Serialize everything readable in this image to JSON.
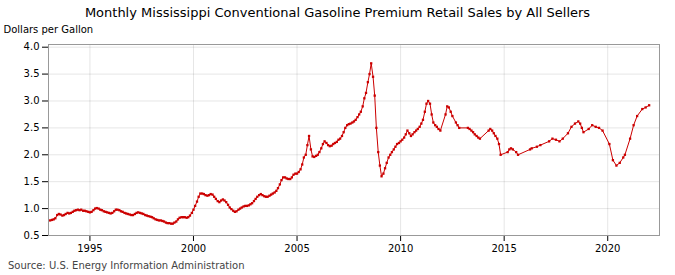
{
  "chart_data": {
    "type": "line",
    "title": "Monthly Mississippi Conventional Gasoline Premium Retail Sales by All Sellers",
    "ylabel": "Dollars per Gallon",
    "source": "Source: U.S. Energy Information Administration",
    "color": "#cc0000",
    "marker": "square",
    "grid": true,
    "xlim": [
      1993.0,
      2022.5
    ],
    "ylim": [
      0.5,
      4.05
    ],
    "xticks": [
      1995,
      2000,
      2005,
      2010,
      2015,
      2020
    ],
    "yticks": [
      0.5,
      {
        "value": 1.0,
        "label": "1.0"
      },
      1.5,
      {
        "value": 2.0,
        "label": "2.0"
      },
      2.5,
      {
        "value": 3.0,
        "label": "3.0"
      },
      3.5,
      {
        "value": 4.0,
        "label": "4.0"
      }
    ],
    "x": [
      1993.08,
      1993.17,
      1993.25,
      1993.33,
      1993.42,
      1993.5,
      1993.58,
      1993.67,
      1993.75,
      1993.83,
      1993.92,
      1994.0,
      1994.08,
      1994.17,
      1994.25,
      1994.33,
      1994.42,
      1994.5,
      1994.58,
      1994.67,
      1994.75,
      1994.83,
      1994.92,
      1995.0,
      1995.08,
      1995.17,
      1995.25,
      1995.33,
      1995.42,
      1995.5,
      1995.58,
      1995.67,
      1995.75,
      1995.83,
      1995.92,
      1996.0,
      1996.08,
      1996.17,
      1996.25,
      1996.33,
      1996.42,
      1996.5,
      1996.58,
      1996.67,
      1996.75,
      1996.83,
      1996.92,
      1997.0,
      1997.08,
      1997.17,
      1997.25,
      1997.33,
      1997.42,
      1997.5,
      1997.58,
      1997.67,
      1997.75,
      1997.83,
      1997.92,
      1998.0,
      1998.08,
      1998.17,
      1998.25,
      1998.33,
      1998.42,
      1998.5,
      1998.58,
      1998.67,
      1998.75,
      1998.83,
      1998.92,
      1999.0,
      1999.08,
      1999.17,
      1999.25,
      1999.33,
      1999.42,
      1999.5,
      1999.58,
      1999.67,
      1999.75,
      1999.83,
      1999.92,
      2000.0,
      2000.08,
      2000.17,
      2000.25,
      2000.33,
      2000.42,
      2000.5,
      2000.58,
      2000.67,
      2000.75,
      2000.83,
      2000.92,
      2001.0,
      2001.08,
      2001.17,
      2001.25,
      2001.33,
      2001.42,
      2001.5,
      2001.58,
      2001.67,
      2001.75,
      2001.83,
      2001.92,
      2002.0,
      2002.08,
      2002.17,
      2002.25,
      2002.33,
      2002.42,
      2002.5,
      2002.58,
      2002.67,
      2002.75,
      2002.83,
      2002.92,
      2003.0,
      2003.08,
      2003.17,
      2003.25,
      2003.33,
      2003.42,
      2003.5,
      2003.58,
      2003.67,
      2003.75,
      2003.83,
      2003.92,
      2004.0,
      2004.08,
      2004.17,
      2004.25,
      2004.33,
      2004.42,
      2004.5,
      2004.58,
      2004.67,
      2004.75,
      2004.83,
      2004.92,
      2005.0,
      2005.08,
      2005.17,
      2005.25,
      2005.33,
      2005.42,
      2005.5,
      2005.58,
      2005.67,
      2005.75,
      2005.83,
      2005.92,
      2006.0,
      2006.08,
      2006.17,
      2006.25,
      2006.33,
      2006.42,
      2006.5,
      2006.58,
      2006.67,
      2006.75,
      2006.83,
      2006.92,
      2007.0,
      2007.08,
      2007.17,
      2007.25,
      2007.33,
      2007.42,
      2007.5,
      2007.58,
      2007.67,
      2007.75,
      2007.83,
      2007.92,
      2008.0,
      2008.08,
      2008.17,
      2008.25,
      2008.33,
      2008.42,
      2008.5,
      2008.58,
      2008.67,
      2008.75,
      2008.83,
      2008.92,
      2009.0,
      2009.08,
      2009.17,
      2009.25,
      2009.33,
      2009.42,
      2009.5,
      2009.58,
      2009.67,
      2009.75,
      2009.83,
      2009.92,
      2010.0,
      2010.08,
      2010.17,
      2010.25,
      2010.33,
      2010.42,
      2010.5,
      2010.58,
      2010.67,
      2010.75,
      2010.83,
      2010.92,
      2011.0,
      2011.08,
      2011.17,
      2011.25,
      2011.33,
      2011.42,
      2011.5,
      2011.58,
      2011.67,
      2011.75,
      2011.83,
      2011.92,
      2012.17,
      2012.25,
      2012.33,
      2012.42,
      2012.5,
      2012.67,
      2012.75,
      2012.83,
      2013.25,
      2013.33,
      2013.42,
      2013.5,
      2013.58,
      2013.67,
      2013.75,
      2013.83,
      2014.25,
      2014.33,
      2014.42,
      2014.5,
      2014.58,
      2014.67,
      2014.75,
      2014.83,
      2015.17,
      2015.25,
      2015.33,
      2015.42,
      2015.58,
      2015.67,
      2016.25,
      2016.33,
      2016.58,
      2016.75,
      2017.17,
      2017.33,
      2017.5,
      2017.67,
      2017.83,
      2018.08,
      2018.25,
      2018.42,
      2018.58,
      2018.67,
      2018.75,
      2018.83,
      2019.08,
      2019.25,
      2019.42,
      2019.58,
      2019.75,
      2020.08,
      2020.25,
      2020.42,
      2020.58,
      2020.75,
      2020.83,
      2021.08,
      2021.25,
      2021.42,
      2021.67,
      2021.83,
      2022.0
    ],
    "values": [
      0.78,
      0.79,
      0.8,
      0.82,
      0.88,
      0.9,
      0.89,
      0.87,
      0.88,
      0.9,
      0.92,
      0.91,
      0.92,
      0.94,
      0.96,
      0.97,
      0.98,
      0.97,
      0.98,
      0.96,
      0.96,
      0.95,
      0.94,
      0.93,
      0.94,
      0.97,
      1.0,
      1.01,
      1.0,
      0.98,
      0.97,
      0.95,
      0.94,
      0.93,
      0.92,
      0.91,
      0.92,
      0.95,
      0.98,
      0.98,
      0.97,
      0.95,
      0.94,
      0.92,
      0.91,
      0.9,
      0.89,
      0.88,
      0.88,
      0.9,
      0.92,
      0.93,
      0.92,
      0.91,
      0.9,
      0.88,
      0.87,
      0.86,
      0.85,
      0.84,
      0.82,
      0.8,
      0.79,
      0.78,
      0.78,
      0.77,
      0.76,
      0.74,
      0.73,
      0.73,
      0.72,
      0.72,
      0.74,
      0.76,
      0.8,
      0.83,
      0.84,
      0.84,
      0.84,
      0.83,
      0.84,
      0.87,
      0.92,
      0.98,
      1.05,
      1.13,
      1.22,
      1.28,
      1.28,
      1.27,
      1.25,
      1.24,
      1.25,
      1.27,
      1.26,
      1.22,
      1.18,
      1.14,
      1.12,
      1.15,
      1.17,
      1.15,
      1.12,
      1.07,
      1.02,
      0.99,
      0.96,
      0.94,
      0.95,
      0.98,
      1.0,
      1.02,
      1.04,
      1.05,
      1.05,
      1.06,
      1.08,
      1.1,
      1.14,
      1.18,
      1.22,
      1.25,
      1.27,
      1.25,
      1.23,
      1.22,
      1.22,
      1.24,
      1.26,
      1.28,
      1.3,
      1.33,
      1.38,
      1.45,
      1.53,
      1.58,
      1.58,
      1.56,
      1.55,
      1.55,
      1.58,
      1.63,
      1.65,
      1.65,
      1.68,
      1.73,
      1.82,
      1.95,
      2.0,
      2.18,
      2.35,
      2.1,
      1.97,
      1.96,
      1.98,
      2.0,
      2.05,
      2.12,
      2.2,
      2.25,
      2.22,
      2.18,
      2.16,
      2.17,
      2.2,
      2.22,
      2.24,
      2.28,
      2.3,
      2.35,
      2.42,
      2.5,
      2.55,
      2.57,
      2.58,
      2.6,
      2.62,
      2.65,
      2.7,
      2.75,
      2.8,
      2.9,
      3.05,
      3.15,
      3.35,
      3.5,
      3.7,
      3.45,
      3.1,
      2.5,
      2.05,
      1.8,
      1.6,
      1.65,
      1.75,
      1.85,
      1.95,
      2.0,
      2.05,
      2.1,
      2.15,
      2.2,
      2.22,
      2.25,
      2.28,
      2.32,
      2.38,
      2.45,
      2.4,
      2.35,
      2.38,
      2.42,
      2.45,
      2.48,
      2.52,
      2.58,
      2.65,
      2.8,
      2.95,
      3.0,
      2.95,
      2.75,
      2.6,
      2.55,
      2.52,
      2.48,
      2.45,
      2.75,
      2.9,
      2.88,
      2.8,
      2.72,
      2.6,
      2.55,
      2.5,
      2.5,
      2.48,
      2.45,
      2.42,
      2.38,
      2.35,
      2.32,
      2.3,
      2.45,
      2.48,
      2.45,
      2.4,
      2.35,
      2.3,
      2.2,
      2.0,
      2.05,
      2.1,
      2.12,
      2.1,
      2.05,
      2.0,
      2.1,
      2.12,
      2.15,
      2.18,
      2.25,
      2.3,
      2.28,
      2.25,
      2.3,
      2.4,
      2.52,
      2.58,
      2.62,
      2.58,
      2.5,
      2.42,
      2.48,
      2.55,
      2.52,
      2.5,
      2.45,
      2.2,
      1.9,
      1.8,
      1.85,
      1.95,
      2.0,
      2.3,
      2.55,
      2.72,
      2.85,
      2.88,
      2.92
    ]
  }
}
